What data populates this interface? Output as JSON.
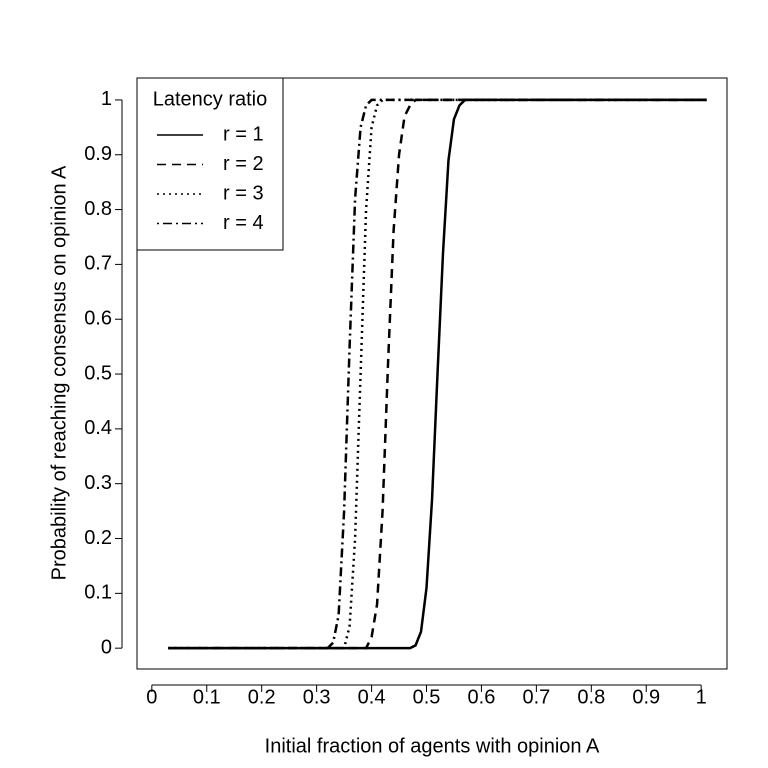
{
  "chart_data": {
    "type": "line",
    "x_label": "Initial fraction of agents with opinion A",
    "y_label": "Probability of reaching consensus on opinion A",
    "xlim": [
      -0.027,
      1.047
    ],
    "ylim": [
      -0.038,
      1.04
    ],
    "xticks": [
      0,
      0.1,
      0.2,
      0.3,
      0.4,
      0.5,
      0.6,
      0.7,
      0.8,
      0.9,
      1
    ],
    "yticks": [
      0,
      0.1,
      0.2,
      0.3,
      0.4,
      0.5,
      0.6,
      0.7,
      0.8,
      0.9,
      1
    ],
    "legend_title": "Latency ratio",
    "legend_position": "top-left",
    "series": [
      {
        "name": "r = 1",
        "color": "#000000",
        "linestyle": "solid",
        "x": [
          0.03,
          0.47,
          0.48,
          0.49,
          0.5,
          0.51,
          0.52,
          0.53,
          0.54,
          0.55,
          0.56,
          0.57,
          1.01
        ],
        "values": [
          0,
          0,
          0.005,
          0.03,
          0.11,
          0.27,
          0.5,
          0.72,
          0.89,
          0.965,
          0.99,
          1,
          1
        ]
      },
      {
        "name": "r = 2",
        "color": "#000000",
        "linestyle": "dashed",
        "x": [
          0.03,
          0.39,
          0.4,
          0.41,
          0.42,
          0.43,
          0.44,
          0.45,
          0.46,
          0.47,
          0.48,
          1.01
        ],
        "values": [
          0,
          0,
          0.02,
          0.08,
          0.25,
          0.52,
          0.76,
          0.9,
          0.97,
          0.99,
          1,
          1
        ]
      },
      {
        "name": "r = 3",
        "color": "#000000",
        "linestyle": "dotted",
        "x": [
          0.03,
          0.35,
          0.36,
          0.37,
          0.38,
          0.39,
          0.4,
          0.41,
          0.42,
          1.01
        ],
        "values": [
          0,
          0,
          0.04,
          0.2,
          0.5,
          0.8,
          0.95,
          0.99,
          1,
          1
        ]
      },
      {
        "name": "r = 4",
        "color": "#000000",
        "linestyle": "dotdash",
        "x": [
          0.03,
          0.32,
          0.33,
          0.34,
          0.35,
          0.36,
          0.37,
          0.38,
          0.39,
          0.4,
          1.01
        ],
        "values": [
          0,
          0,
          0.01,
          0.06,
          0.25,
          0.55,
          0.82,
          0.95,
          0.99,
          1,
          1
        ]
      }
    ]
  }
}
